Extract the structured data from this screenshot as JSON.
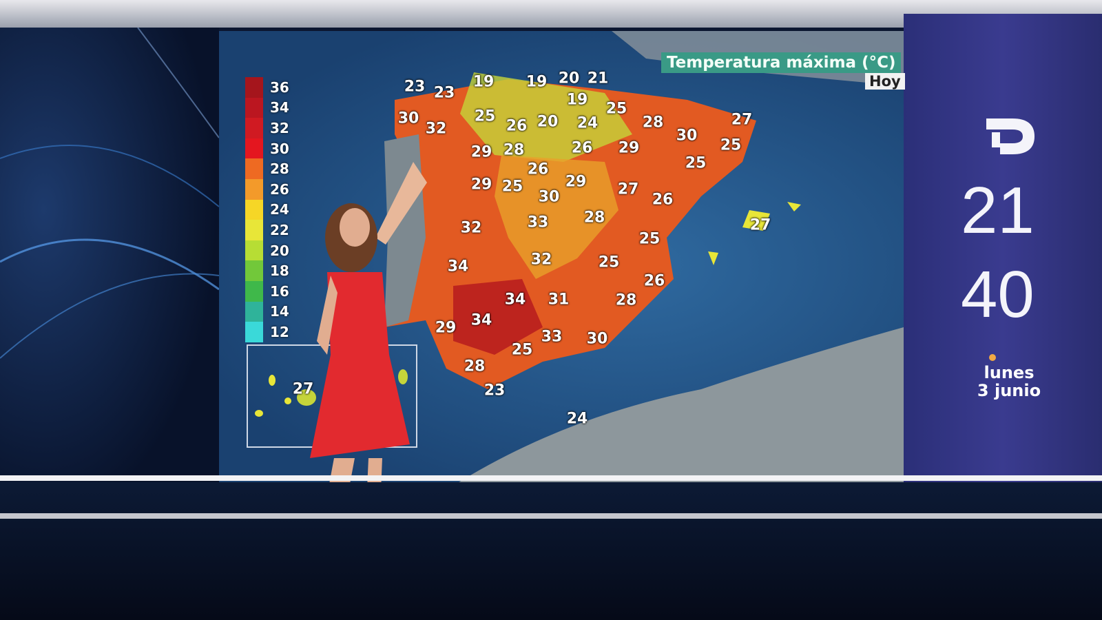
{
  "map": {
    "title": "Temperatura máxima (°C)",
    "period": "Hoy",
    "legend": [
      "36",
      "34",
      "32",
      "30",
      "28",
      "26",
      "24",
      "22",
      "20",
      "18",
      "16",
      "14",
      "12"
    ],
    "legend_colors": [
      "#a5151c",
      "#bb1620",
      "#d01a22",
      "#e4161f",
      "#ee6a22",
      "#f39a2a",
      "#f6d626",
      "#e8e638",
      "#b7dd34",
      "#72c83a",
      "#3fb84a",
      "#2fb39a",
      "#3ad9d9"
    ],
    "temperatures": [
      "23",
      "23",
      "19",
      "19",
      "20",
      "21",
      "19",
      "25",
      "27",
      "30",
      "32",
      "25",
      "26",
      "20",
      "24",
      "28",
      "30",
      "25",
      "29",
      "28",
      "26",
      "29",
      "25",
      "26",
      "29",
      "25",
      "30",
      "29",
      "27",
      "26",
      "27",
      "32",
      "33",
      "28",
      "25",
      "34",
      "32",
      "25",
      "26",
      "34",
      "31",
      "28",
      "29",
      "34",
      "33",
      "30",
      "25",
      "28",
      "23",
      "24",
      "27"
    ]
  },
  "side_panel": {
    "hour": "21",
    "minute": "40",
    "weekday": "lunes",
    "date": "3 junio",
    "channel_logo": "TD"
  }
}
